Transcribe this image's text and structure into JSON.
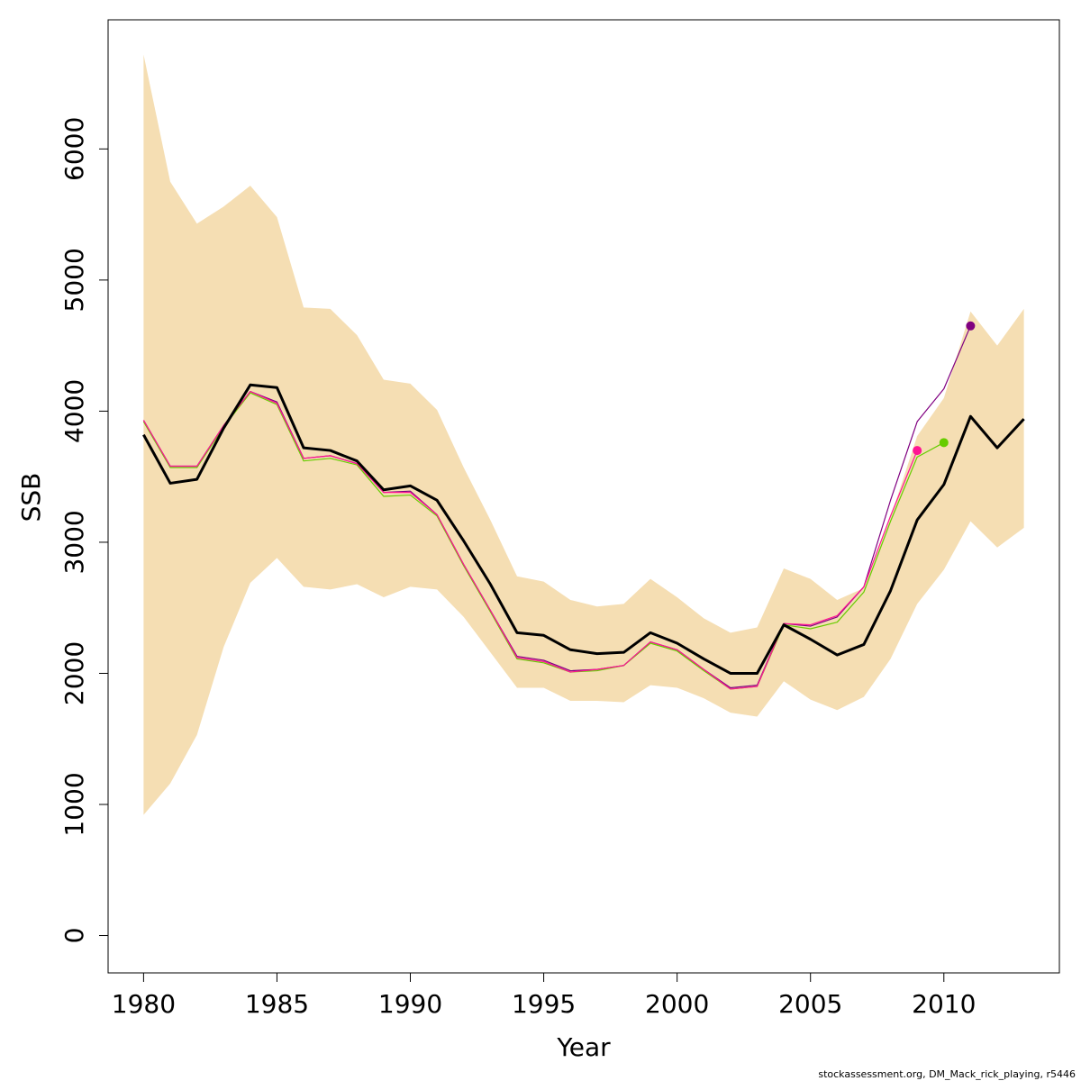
{
  "chart_data": {
    "type": "line",
    "xlabel": "Year",
    "ylabel": "SSB",
    "xlim": [
      1978.67,
      2014.33
    ],
    "ylim": [
      -285,
      6985
    ],
    "x_ticks": [
      1980,
      1985,
      1990,
      1995,
      2000,
      2005,
      2010
    ],
    "x_tick_labels": [
      "1980",
      "1985",
      "1990",
      "1995",
      "2000",
      "2005",
      "2010"
    ],
    "y_ticks": [
      0,
      1000,
      2000,
      3000,
      4000,
      5000,
      6000
    ],
    "y_tick_labels": [
      "0",
      "1000",
      "2000",
      "3000",
      "4000",
      "5000",
      "6000"
    ],
    "grid": false,
    "footer": "stockassessment.org, DM_Mack_rick_playing, r5446",
    "colors": {
      "band": "#f5deb3",
      "main": "#000000",
      "retro_2011": "#800080",
      "retro_2010": "#66cc00",
      "retro_2009": "#ff1493"
    },
    "band": {
      "x": [
        1980,
        1981,
        1982,
        1983,
        1984,
        1985,
        1986,
        1987,
        1988,
        1989,
        1990,
        1991,
        1992,
        1993,
        1994,
        1995,
        1996,
        1997,
        1998,
        1999,
        2000,
        2001,
        2002,
        2003,
        2004,
        2005,
        2006,
        2007,
        2008,
        2009,
        2010,
        2011,
        2012,
        2013
      ],
      "lower": [
        920,
        1160,
        1530,
        2200,
        2690,
        2880,
        2660,
        2640,
        2680,
        2580,
        2660,
        2640,
        2430,
        2160,
        1890,
        1890,
        1790,
        1790,
        1780,
        1910,
        1890,
        1810,
        1700,
        1670,
        1940,
        1800,
        1720,
        1820,
        2110,
        2530,
        2790,
        3160,
        2960,
        3110
      ],
      "upper": [
        6720,
        5750,
        5430,
        5560,
        5720,
        5480,
        4790,
        4780,
        4580,
        4240,
        4210,
        4010,
        3570,
        3170,
        2740,
        2700,
        2560,
        2510,
        2530,
        2720,
        2580,
        2420,
        2310,
        2350,
        2800,
        2720,
        2560,
        2650,
        3190,
        3810,
        4100,
        4760,
        4500,
        4780
      ]
    },
    "series": [
      {
        "name": "",
        "role": "main",
        "x": [
          1980,
          1981,
          1982,
          1983,
          1984,
          1985,
          1986,
          1987,
          1988,
          1989,
          1990,
          1991,
          1992,
          1993,
          1994,
          1995,
          1996,
          1997,
          1998,
          1999,
          2000,
          2001,
          2002,
          2003,
          2004,
          2005,
          2006,
          2007,
          2008,
          2009,
          2010,
          2011,
          2012,
          2013
        ],
        "values": [
          3820,
          3450,
          3480,
          3870,
          4200,
          4180,
          3720,
          3700,
          3620,
          3400,
          3430,
          3320,
          3010,
          2680,
          2310,
          2290,
          2180,
          2150,
          2160,
          2310,
          2230,
          2110,
          2000,
          2000,
          2370,
          2260,
          2140,
          2220,
          2630,
          3170,
          3440,
          3960,
          3720,
          3940
        ]
      },
      {
        "name": "",
        "role": "retro_2011",
        "x": [
          1980,
          1981,
          1982,
          1983,
          1984,
          1985,
          1986,
          1987,
          1988,
          1989,
          1990,
          1991,
          1992,
          1993,
          1994,
          1995,
          1996,
          1997,
          1998,
          1999,
          2000,
          2001,
          2002,
          2003,
          2004,
          2005,
          2006,
          2007,
          2008,
          2009,
          2010,
          2011
        ],
        "values": [
          3930,
          3580,
          3580,
          3890,
          4150,
          4070,
          3640,
          3660,
          3600,
          3380,
          3390,
          3210,
          2830,
          2480,
          2130,
          2100,
          2020,
          2030,
          2060,
          2240,
          2180,
          2030,
          1890,
          1910,
          2380,
          2360,
          2430,
          2660,
          3320,
          3920,
          4170,
          4650
        ]
      },
      {
        "name": "",
        "role": "retro_2010",
        "x": [
          1980,
          1981,
          1982,
          1983,
          1984,
          1985,
          1986,
          1987,
          1988,
          1989,
          1990,
          1991,
          1992,
          1993,
          1994,
          1995,
          1996,
          1997,
          1998,
          1999,
          2000,
          2001,
          2002,
          2003,
          2004,
          2005,
          2006,
          2007,
          2008,
          2009,
          2010
        ],
        "values": [
          3920,
          3570,
          3570,
          3880,
          4140,
          4050,
          3620,
          3640,
          3590,
          3350,
          3360,
          3200,
          2820,
          2470,
          2110,
          2080,
          2010,
          2020,
          2060,
          2230,
          2170,
          2020,
          1880,
          1900,
          2370,
          2340,
          2390,
          2620,
          3160,
          3650,
          3760
        ]
      },
      {
        "name": "",
        "role": "retro_2009",
        "x": [
          1980,
          1981,
          1982,
          1983,
          1984,
          1985,
          1986,
          1987,
          1988,
          1989,
          1990,
          1991,
          1992,
          1993,
          1994,
          1995,
          1996,
          1997,
          1998,
          1999,
          2000,
          2001,
          2002,
          2003,
          2004,
          2005,
          2006,
          2007,
          2008,
          2009
        ],
        "values": [
          3930,
          3580,
          3580,
          3890,
          4150,
          4060,
          3640,
          3660,
          3600,
          3380,
          3380,
          3210,
          2830,
          2480,
          2120,
          2090,
          2010,
          2030,
          2060,
          2240,
          2180,
          2030,
          1880,
          1900,
          2380,
          2370,
          2440,
          2660,
          3200,
          3700
        ]
      }
    ]
  }
}
